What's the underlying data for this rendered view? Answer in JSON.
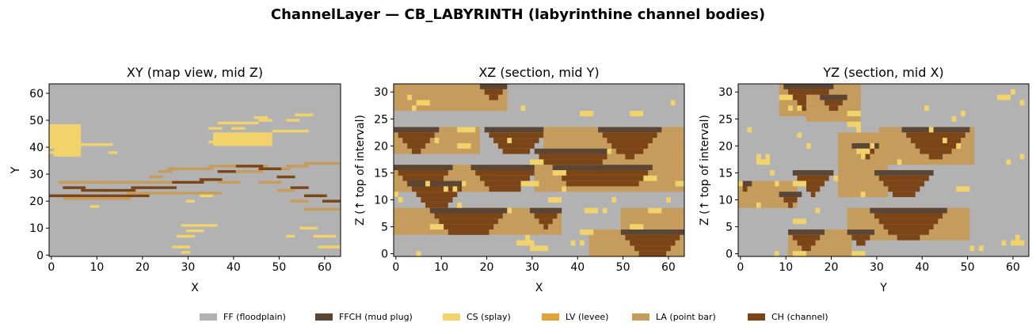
{
  "suptitle": "ChannelLayer — CB_LABYRINTH (labyrinthine channel bodies)",
  "facies": [
    {
      "code": 0,
      "label": "FF (floodplain)",
      "color": "#b2b2b2"
    },
    {
      "code": 1,
      "label": "FFCH (mud plug)",
      "color": "#5b4636"
    },
    {
      "code": 2,
      "label": "CS (splay)",
      "color": "#f2d36b"
    },
    {
      "code": 3,
      "label": "LV (levee)",
      "color": "#e2a43a"
    },
    {
      "code": 4,
      "label": "LA (point bar)",
      "color": "#c69c5d"
    },
    {
      "code": 5,
      "label": "CH (channel)",
      "color": "#7b4517"
    }
  ],
  "chart_data": [
    {
      "type": "heatmap",
      "title": "XY  (map view, mid Z)",
      "xlabel": "X",
      "ylabel": "Y",
      "xlim": [
        0,
        63
      ],
      "ylim": [
        0,
        63
      ],
      "xticks": [
        0,
        10,
        20,
        30,
        40,
        50,
        60
      ],
      "yticks": [
        0,
        10,
        20,
        30,
        40,
        50,
        60
      ],
      "grid": false,
      "background_code": 0,
      "cells": [
        [
          0,
          21,
          22,
          27,
          5
        ],
        [
          22,
          25,
          27,
          4
        ],
        [
          2,
          28,
          27,
          4
        ],
        [
          22,
          24,
          29,
          4
        ],
        [
          24,
          26,
          31,
          4
        ],
        [
          26,
          35,
          32,
          4
        ],
        [
          35,
          47,
          33,
          4
        ],
        [
          47,
          52,
          32,
          4
        ],
        [
          52,
          56,
          33,
          4
        ],
        [
          56,
          63,
          34,
          4
        ],
        [
          3,
          7,
          25,
          5
        ],
        [
          7,
          12,
          24,
          5
        ],
        [
          12,
          18,
          24,
          5
        ],
        [
          18,
          22,
          25,
          5
        ],
        [
          22,
          27,
          25,
          5
        ],
        [
          27,
          33,
          27,
          5
        ],
        [
          33,
          37,
          28,
          5
        ],
        [
          37,
          41,
          31,
          5
        ],
        [
          41,
          46,
          33,
          5
        ],
        [
          46,
          50,
          32,
          5
        ],
        [
          50,
          53,
          29,
          5
        ],
        [
          53,
          56,
          25,
          5
        ],
        [
          56,
          60,
          22,
          5
        ],
        [
          60,
          63,
          20,
          5
        ],
        [
          3,
          17,
          21,
          4
        ],
        [
          17,
          26,
          23,
          4
        ],
        [
          26,
          37,
          23,
          4
        ],
        [
          37,
          41,
          27,
          4
        ],
        [
          41,
          46,
          31,
          4
        ],
        [
          46,
          50,
          27,
          4
        ],
        [
          50,
          53,
          24,
          4
        ],
        [
          53,
          56,
          20,
          4
        ],
        [
          56,
          63,
          17,
          4
        ],
        [
          0,
          1,
          38,
          2
        ],
        [
          1,
          6,
          38,
          2
        ],
        [
          5,
          8,
          41,
          2
        ],
        [
          9,
          13,
          41,
          2
        ],
        [
          13,
          14,
          38,
          2
        ],
        [
          35,
          37,
          47,
          2
        ],
        [
          37,
          40,
          49,
          2
        ],
        [
          40,
          42,
          47,
          2
        ],
        [
          35,
          37,
          42,
          2
        ],
        [
          40,
          45,
          49,
          2
        ],
        [
          45,
          47,
          51,
          2
        ],
        [
          46,
          48,
          50,
          2
        ],
        [
          49,
          53,
          46,
          2
        ],
        [
          52,
          54,
          50,
          2
        ],
        [
          54,
          57,
          52,
          2
        ],
        [
          54,
          56,
          46,
          2
        ],
        [
          30,
          31,
          20,
          2
        ],
        [
          33,
          35,
          22,
          2
        ],
        [
          9,
          10,
          18,
          2
        ],
        [
          29,
          36,
          11,
          2
        ],
        [
          30,
          33,
          9,
          2
        ],
        [
          28,
          31,
          7,
          2
        ],
        [
          27,
          30,
          3,
          2
        ],
        [
          29,
          30,
          1,
          2
        ],
        [
          55,
          58,
          10,
          2
        ],
        [
          58,
          62,
          7,
          2
        ],
        [
          59,
          63,
          3,
          2
        ],
        [
          52,
          53,
          7,
          2
        ]
      ],
      "cell_dims": [
        [
          0,
          3,
          21,
          6
        ],
        [
          1,
          6,
          40,
          7
        ],
        [
          2,
          1,
          43,
          4
        ],
        [
          1,
          1,
          0,
          0
        ]
      ]
    },
    {
      "type": "heatmap",
      "title": "XZ  (section, mid Y)",
      "xlabel": "X",
      "ylabel": "Z  (↑ top of interval)",
      "xlim": [
        0,
        63
      ],
      "ylim": [
        0,
        31
      ],
      "xticks": [
        0,
        10,
        20,
        30,
        40,
        50,
        60
      ],
      "yticks": [
        0,
        5,
        10,
        15,
        20,
        25,
        30
      ],
      "grid": false,
      "background_code": 0
    },
    {
      "type": "heatmap",
      "title": "YZ  (section, mid X)",
      "xlabel": "Y",
      "ylabel": "Z  (↑ top of interval)",
      "xlim": [
        0,
        63
      ],
      "ylim": [
        0,
        31
      ],
      "xticks": [
        0,
        10,
        20,
        30,
        40,
        50,
        60
      ],
      "yticks": [
        0,
        5,
        10,
        15,
        20,
        25,
        30
      ],
      "grid": false,
      "background_code": 0
    }
  ]
}
